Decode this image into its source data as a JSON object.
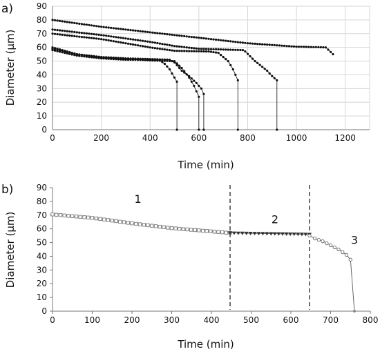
{
  "chart_data": [
    {
      "panel": "a)",
      "type": "line",
      "xlabel": "Time (min)",
      "ylabel": "Diameter (µm)",
      "xlim": [
        0,
        1300
      ],
      "ylim": [
        0,
        90
      ],
      "xticks": [
        0,
        200,
        400,
        600,
        800,
        1000,
        1200
      ],
      "yticks": [
        0,
        10,
        20,
        30,
        40,
        50,
        60,
        70,
        80,
        90
      ],
      "grid": true,
      "series": [
        {
          "points": [
            [
              0,
              80
            ],
            [
              200,
              75
            ],
            [
              400,
              71
            ],
            [
              600,
              67
            ],
            [
              800,
              63
            ],
            [
              1000,
              60.5
            ],
            [
              1120,
              60
            ],
            [
              1150,
              55
            ]
          ]
        },
        {
          "points": [
            [
              0,
              73
            ],
            [
              200,
              69
            ],
            [
              400,
              64
            ],
            [
              500,
              61
            ],
            [
              600,
              59
            ],
            [
              780,
              58
            ],
            [
              790,
              57
            ],
            [
              830,
              50
            ],
            [
              880,
              43
            ],
            [
              900,
              39
            ],
            [
              920,
              36
            ],
            [
              920,
              0
            ]
          ]
        },
        {
          "points": [
            [
              0,
              70
            ],
            [
              200,
              66
            ],
            [
              300,
              63
            ],
            [
              400,
              60
            ],
            [
              500,
              57.5
            ],
            [
              640,
              57
            ],
            [
              680,
              56
            ],
            [
              720,
              50
            ],
            [
              740,
              44
            ],
            [
              750,
              40
            ],
            [
              760,
              36
            ],
            [
              760,
              0
            ]
          ]
        },
        {
          "points": [
            [
              0,
              59
            ],
            [
              100,
              55
            ],
            [
              200,
              53
            ],
            [
              300,
              52
            ],
            [
              400,
              51.5
            ],
            [
              480,
              51
            ],
            [
              500,
              49
            ],
            [
              530,
              43
            ],
            [
              560,
              39
            ],
            [
              590,
              34
            ],
            [
              610,
              30
            ],
            [
              620,
              26
            ],
            [
              620,
              0
            ]
          ]
        },
        {
          "points": [
            [
              0,
              58
            ],
            [
              100,
              54
            ],
            [
              200,
              52
            ],
            [
              300,
              51
            ],
            [
              400,
              51
            ],
            [
              440,
              50.5
            ],
            [
              460,
              48
            ],
            [
              480,
              44
            ],
            [
              490,
              41
            ],
            [
              500,
              38
            ],
            [
              510,
              35
            ],
            [
              510,
              0
            ]
          ]
        },
        {
          "points": [
            [
              0,
              60
            ],
            [
              100,
              55
            ],
            [
              200,
              52.5
            ],
            [
              300,
              51.5
            ],
            [
              400,
              50.5
            ],
            [
              500,
              50
            ],
            [
              530,
              45
            ],
            [
              560,
              38
            ],
            [
              580,
              32
            ],
            [
              600,
              24
            ],
            [
              600,
              0
            ]
          ]
        }
      ]
    },
    {
      "panel": "b)",
      "type": "line",
      "xlabel": "Time (min)",
      "ylabel": "Diameter (µm)",
      "xlim": [
        0,
        800
      ],
      "ylim": [
        0,
        90
      ],
      "xticks": [
        0,
        100,
        200,
        300,
        400,
        500,
        600,
        700,
        800
      ],
      "yticks": [
        0,
        10,
        20,
        30,
        40,
        50,
        60,
        70,
        80,
        90
      ],
      "grid": false,
      "phase_lines": [
        447,
        647
      ],
      "annotations": [
        {
          "text": "1",
          "x": 215,
          "y": 79
        },
        {
          "text": "2",
          "x": 560,
          "y": 64
        },
        {
          "text": "3",
          "x": 760,
          "y": 49
        }
      ],
      "series": [
        {
          "marker": "square",
          "points": [
            [
              0,
              70.5
            ],
            [
              100,
              68
            ],
            [
              200,
              64
            ],
            [
              300,
              60.5
            ],
            [
              447,
              57
            ]
          ]
        },
        {
          "marker": "triangle",
          "points": [
            [
              447,
              57
            ],
            [
              550,
              56.5
            ],
            [
              647,
              56
            ]
          ]
        },
        {
          "marker": "circle",
          "points": [
            [
              647,
              55
            ],
            [
              660,
              53
            ],
            [
              680,
              51
            ],
            [
              700,
              48
            ],
            [
              720,
              45
            ],
            [
              740,
              41
            ],
            [
              750,
              37.5
            ],
            [
              760,
              0
            ]
          ]
        }
      ]
    }
  ]
}
